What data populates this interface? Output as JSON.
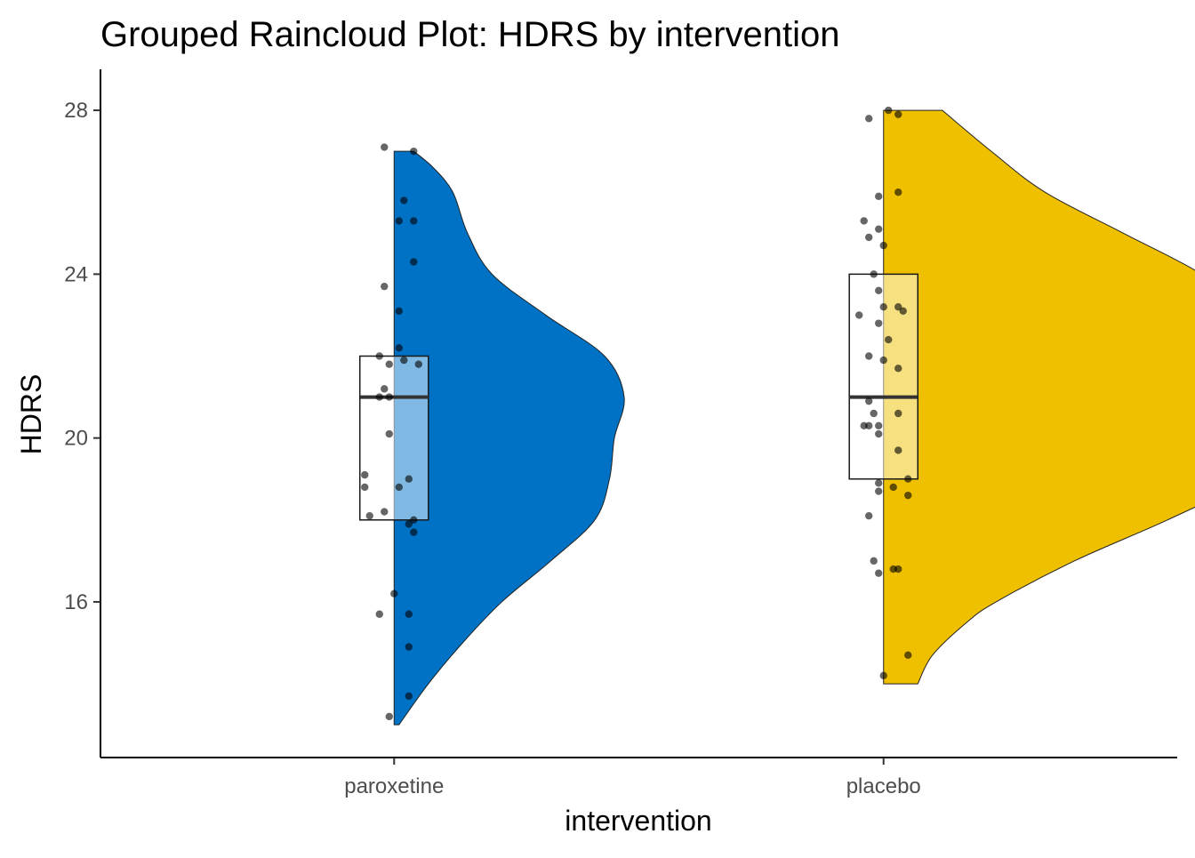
{
  "chart_data": {
    "type": "raincloud",
    "title": "Grouped Raincloud Plot: HDRS by intervention",
    "xlabel": "intervention",
    "ylabel": "HDRS",
    "ylim": [
      12.2,
      29
    ],
    "yticks": [
      16,
      20,
      24,
      28
    ],
    "categories": [
      "paroxetine",
      "placebo"
    ],
    "grid": false,
    "legend": "none",
    "series": [
      {
        "category": "paroxetine",
        "color": "#0072C6",
        "box": {
          "q1": 18,
          "median": 21,
          "q3": 22
        },
        "density": [
          {
            "y": 13.0,
            "w": 0.01
          },
          {
            "y": 14.0,
            "w": 0.07
          },
          {
            "y": 15.0,
            "w": 0.14
          },
          {
            "y": 16.0,
            "w": 0.22
          },
          {
            "y": 17.0,
            "w": 0.32
          },
          {
            "y": 18.0,
            "w": 0.41
          },
          {
            "y": 19.0,
            "w": 0.44
          },
          {
            "y": 20.0,
            "w": 0.45
          },
          {
            "y": 21.0,
            "w": 0.47
          },
          {
            "y": 22.0,
            "w": 0.43
          },
          {
            "y": 23.0,
            "w": 0.31
          },
          {
            "y": 24.0,
            "w": 0.2
          },
          {
            "y": 25.0,
            "w": 0.15
          },
          {
            "y": 26.0,
            "w": 0.12
          },
          {
            "y": 26.6,
            "w": 0.08
          },
          {
            "y": 27.0,
            "w": 0.04
          }
        ],
        "points": [
          {
            "dx": -0.02,
            "y": 27.1
          },
          {
            "dx": 0.04,
            "y": 27.0
          },
          {
            "dx": 0.02,
            "y": 25.8
          },
          {
            "dx": 0.01,
            "y": 25.3
          },
          {
            "dx": 0.04,
            "y": 25.3
          },
          {
            "dx": 0.04,
            "y": 24.3
          },
          {
            "dx": -0.02,
            "y": 23.7
          },
          {
            "dx": 0.01,
            "y": 23.1
          },
          {
            "dx": 0.01,
            "y": 22.2
          },
          {
            "dx": -0.03,
            "y": 22.0
          },
          {
            "dx": 0.02,
            "y": 21.9
          },
          {
            "dx": -0.01,
            "y": 21.8
          },
          {
            "dx": 0.05,
            "y": 21.8
          },
          {
            "dx": -0.02,
            "y": 21.2
          },
          {
            "dx": -0.03,
            "y": 21.0
          },
          {
            "dx": -0.01,
            "y": 21.0
          },
          {
            "dx": -0.01,
            "y": 20.1
          },
          {
            "dx": -0.06,
            "y": 19.1
          },
          {
            "dx": 0.03,
            "y": 19.0
          },
          {
            "dx": -0.06,
            "y": 18.8
          },
          {
            "dx": 0.01,
            "y": 18.8
          },
          {
            "dx": -0.05,
            "y": 18.1
          },
          {
            "dx": -0.02,
            "y": 18.2
          },
          {
            "dx": 0.04,
            "y": 18.0
          },
          {
            "dx": 0.03,
            "y": 17.9
          },
          {
            "dx": 0.04,
            "y": 17.7
          },
          {
            "dx": 0.0,
            "y": 16.2
          },
          {
            "dx": -0.03,
            "y": 15.7
          },
          {
            "dx": 0.03,
            "y": 15.7
          },
          {
            "dx": 0.03,
            "y": 14.9
          },
          {
            "dx": 0.03,
            "y": 13.7
          },
          {
            "dx": -0.01,
            "y": 13.2
          }
        ]
      },
      {
        "category": "placebo",
        "color": "#EFC000",
        "box": {
          "q1": 19,
          "median": 21,
          "q3": 24
        },
        "density": [
          {
            "y": 14.0,
            "w": 0.07
          },
          {
            "y": 14.7,
            "w": 0.1
          },
          {
            "y": 15.5,
            "w": 0.17
          },
          {
            "y": 16.0,
            "w": 0.23
          },
          {
            "y": 17.0,
            "w": 0.39
          },
          {
            "y": 18.0,
            "w": 0.58
          },
          {
            "y": 19.0,
            "w": 0.75
          },
          {
            "y": 20.0,
            "w": 0.86
          },
          {
            "y": 21.0,
            "w": 0.88
          },
          {
            "y": 22.0,
            "w": 0.83
          },
          {
            "y": 23.0,
            "w": 0.76
          },
          {
            "y": 24.0,
            "w": 0.65
          },
          {
            "y": 25.0,
            "w": 0.49
          },
          {
            "y": 26.0,
            "w": 0.33
          },
          {
            "y": 27.0,
            "w": 0.22
          },
          {
            "y": 28.0,
            "w": 0.12
          }
        ],
        "points": [
          {
            "dx": -0.03,
            "y": 27.8
          },
          {
            "dx": 0.01,
            "y": 28.0
          },
          {
            "dx": 0.03,
            "y": 27.9
          },
          {
            "dx": -0.01,
            "y": 25.9
          },
          {
            "dx": 0.03,
            "y": 26.0
          },
          {
            "dx": -0.04,
            "y": 25.3
          },
          {
            "dx": -0.01,
            "y": 25.1
          },
          {
            "dx": -0.03,
            "y": 24.9
          },
          {
            "dx": 0.0,
            "y": 24.7
          },
          {
            "dx": -0.02,
            "y": 24.0
          },
          {
            "dx": -0.01,
            "y": 23.6
          },
          {
            "dx": 0.0,
            "y": 23.2
          },
          {
            "dx": 0.03,
            "y": 23.2
          },
          {
            "dx": 0.04,
            "y": 23.1
          },
          {
            "dx": -0.05,
            "y": 23.0
          },
          {
            "dx": -0.01,
            "y": 22.8
          },
          {
            "dx": 0.01,
            "y": 22.4
          },
          {
            "dx": -0.03,
            "y": 22.0
          },
          {
            "dx": 0.0,
            "y": 21.9
          },
          {
            "dx": 0.03,
            "y": 21.7
          },
          {
            "dx": -0.03,
            "y": 20.9
          },
          {
            "dx": -0.02,
            "y": 20.6
          },
          {
            "dx": 0.03,
            "y": 20.6
          },
          {
            "dx": -0.04,
            "y": 20.3
          },
          {
            "dx": -0.03,
            "y": 20.3
          },
          {
            "dx": -0.01,
            "y": 20.3
          },
          {
            "dx": -0.01,
            "y": 20.1
          },
          {
            "dx": 0.03,
            "y": 19.7
          },
          {
            "dx": 0.05,
            "y": 19.0
          },
          {
            "dx": -0.01,
            "y": 18.9
          },
          {
            "dx": 0.02,
            "y": 18.8
          },
          {
            "dx": -0.01,
            "y": 18.7
          },
          {
            "dx": 0.05,
            "y": 18.6
          },
          {
            "dx": -0.03,
            "y": 18.1
          },
          {
            "dx": -0.02,
            "y": 17.0
          },
          {
            "dx": 0.02,
            "y": 16.8
          },
          {
            "dx": 0.03,
            "y": 16.8
          },
          {
            "dx": -0.01,
            "y": 16.7
          },
          {
            "dx": 0.05,
            "y": 14.7
          },
          {
            "dx": 0.0,
            "y": 14.2
          }
        ]
      }
    ]
  }
}
